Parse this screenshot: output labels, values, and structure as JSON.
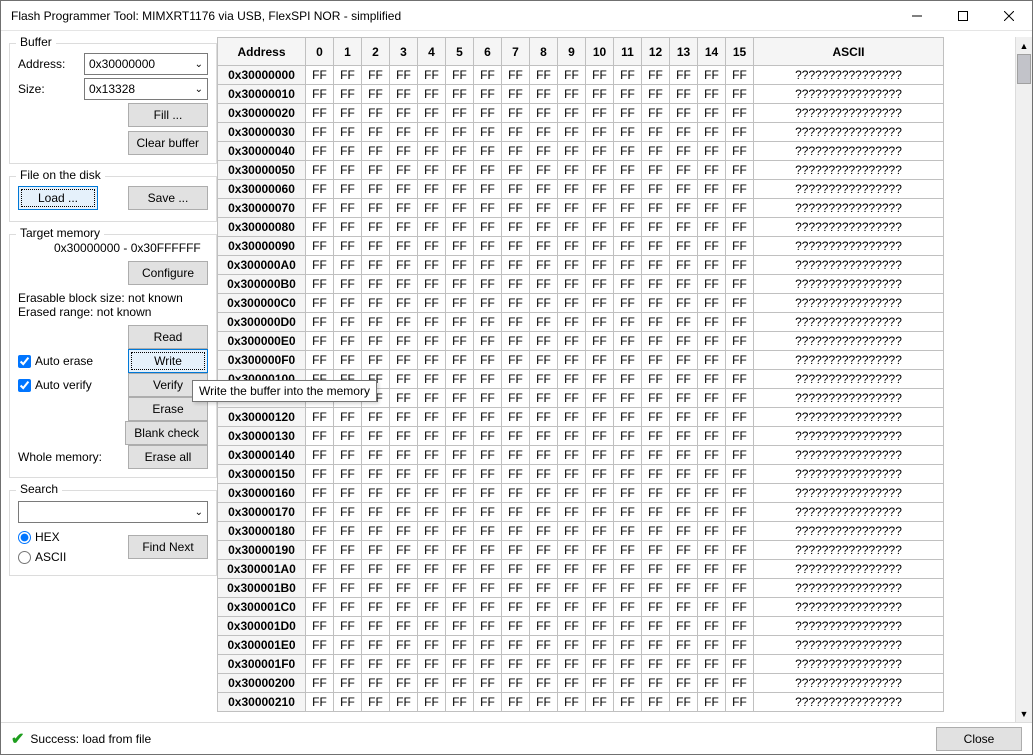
{
  "window": {
    "title": "Flash Programmer Tool:   MIMXRT1176 via USB,   FlexSPI NOR - simplified"
  },
  "buffer": {
    "group_label": "Buffer",
    "address_label": "Address:",
    "address_value": "0x30000000",
    "size_label": "Size:",
    "size_value": "0x13328",
    "fill_label": "Fill ...",
    "clear_label": "Clear buffer"
  },
  "file": {
    "group_label": "File on the disk",
    "load_label": "Load ...",
    "save_label": "Save ..."
  },
  "target": {
    "group_label": "Target memory",
    "range_text": "0x30000000 - 0x30FFFFFF",
    "configure_label": "Configure",
    "erasable_text": "Erasable block size: not known",
    "erased_text": "Erased range: not known",
    "read_label": "Read",
    "write_label": "Write",
    "verify_label": "Verify",
    "erase_label": "Erase",
    "blank_label": "Blank check",
    "erase_all_label": "Erase all",
    "auto_erase_label": "Auto erase",
    "auto_verify_label": "Auto verify",
    "whole_mem_label": "Whole memory:"
  },
  "search": {
    "group_label": "Search",
    "hex_label": "HEX",
    "ascii_label": "ASCII",
    "find_next_label": "Find Next",
    "value": ""
  },
  "tooltip_text": "Write the buffer into the memory",
  "status": {
    "text": "Success: load from file",
    "close_label": "Close"
  },
  "hex": {
    "header_address": "Address",
    "header_ascii": "ASCII",
    "byte_labels": [
      "0",
      "1",
      "2",
      "3",
      "4",
      "5",
      "6",
      "7",
      "8",
      "9",
      "10",
      "11",
      "12",
      "13",
      "14",
      "15"
    ],
    "byte": "FF",
    "ascii_value": "????????????????",
    "addresses": [
      "0x30000000",
      "0x30000010",
      "0x30000020",
      "0x30000030",
      "0x30000040",
      "0x30000050",
      "0x30000060",
      "0x30000070",
      "0x30000080",
      "0x30000090",
      "0x300000A0",
      "0x300000B0",
      "0x300000C0",
      "0x300000D0",
      "0x300000E0",
      "0x300000F0",
      "0x30000100",
      "0x30000110",
      "0x30000120",
      "0x30000130",
      "0x30000140",
      "0x30000150",
      "0x30000160",
      "0x30000170",
      "0x30000180",
      "0x30000190",
      "0x300001A0",
      "0x300001B0",
      "0x300001C0",
      "0x300001D0",
      "0x300001E0",
      "0x300001F0",
      "0x30000200",
      "0x30000210"
    ]
  },
  "colors": {
    "grid_border": "#c0c0c0",
    "header_bg": "#f5f5f5",
    "focus_border": "#0078d7",
    "focus_bg": "#e5f1fb",
    "success": "#1e9e1e"
  }
}
